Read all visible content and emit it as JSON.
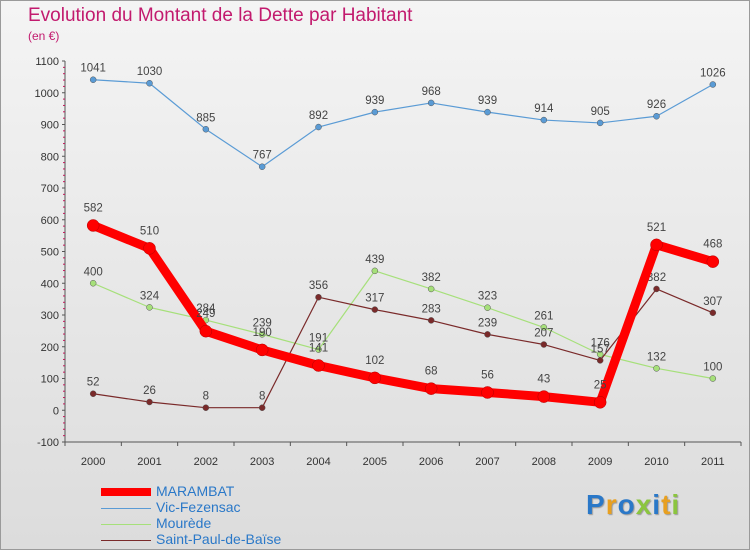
{
  "chart_data": {
    "type": "line",
    "title": "Evolution du Montant de la Dette par Habitant",
    "subtitle": "(en €)",
    "xlabel": "",
    "ylabel": "",
    "x": [
      "2000",
      "2001",
      "2002",
      "2003",
      "2004",
      "2005",
      "2006",
      "2007",
      "2008",
      "2009",
      "2010",
      "2011"
    ],
    "ylim": [
      -100,
      1100
    ],
    "yticks": [
      -100,
      0,
      100,
      200,
      300,
      400,
      500,
      600,
      700,
      800,
      900,
      1000,
      1100
    ],
    "grid": false,
    "legend_position": "bottom-left",
    "series": [
      {
        "name": "MARAMBAT",
        "color": "#ff0000",
        "values": [
          582,
          510,
          249,
          190,
          141,
          102,
          68,
          56,
          43,
          25,
          521,
          468
        ]
      },
      {
        "name": "Vic-Fezensac",
        "color": "#5a9bd5",
        "values": [
          1041,
          1030,
          885,
          767,
          892,
          939,
          968,
          939,
          914,
          905,
          926,
          1026
        ]
      },
      {
        "name": "Mourède",
        "color": "#a6e07a",
        "values": [
          400,
          324,
          284,
          239,
          191,
          439,
          382,
          323,
          261,
          176,
          132,
          100
        ]
      },
      {
        "name": "Saint-Paul-de-Baïse",
        "color": "#7a2a2a",
        "values": [
          52,
          26,
          8,
          8,
          356,
          317,
          283,
          239,
          207,
          157,
          382,
          307
        ]
      }
    ]
  },
  "logo_text": "Proxiti"
}
